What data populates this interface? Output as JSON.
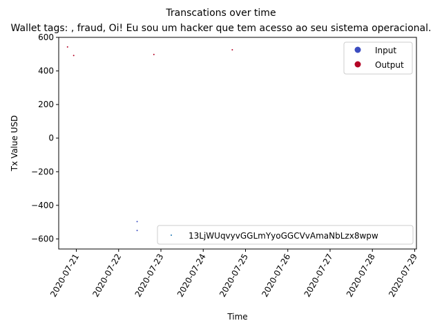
{
  "chart_data": {
    "type": "scatter",
    "title": "Transcations over time",
    "subtitle": "Wallet tags: , fraud, Oi!  Eu sou um hacker que tem acesso ao seu sistema operacional.",
    "xlabel": "Time",
    "ylabel": "Tx Value USD",
    "xlim": [
      "2020-07-20T14:00",
      "2020-07-29T01:00"
    ],
    "ylim": [
      -660,
      600
    ],
    "x_ticks": [
      "2020-07-21",
      "2020-07-22",
      "2020-07-23",
      "2020-07-24",
      "2020-07-25",
      "2020-07-26",
      "2020-07-27",
      "2020-07-28",
      "2020-07-29"
    ],
    "y_ticks": [
      -600,
      -400,
      -200,
      0,
      200,
      400,
      600
    ],
    "grid": false,
    "series": [
      {
        "name": "Input",
        "color": "#3b4cc0",
        "points": [
          {
            "x": "2020-07-22T10:30",
            "y": -497
          },
          {
            "x": "2020-07-22T10:30",
            "y": -550
          }
        ]
      },
      {
        "name": "Output",
        "color": "#b40426",
        "points": [
          {
            "x": "2020-07-20T19:00",
            "y": 543
          },
          {
            "x": "2020-07-20T22:30",
            "y": 492
          },
          {
            "x": "2020-07-22T20:00",
            "y": 498
          },
          {
            "x": "2020-07-24T16:30",
            "y": 526
          }
        ]
      }
    ],
    "legends": [
      {
        "location": "upper right",
        "entries": [
          "Input",
          "Output"
        ]
      },
      {
        "location": "lower right",
        "entries": [
          "13LjWUqvyvGGLmYyoGGCVvAmaNbLzx8wpw"
        ],
        "marker_color": "#1f77b4"
      }
    ]
  }
}
